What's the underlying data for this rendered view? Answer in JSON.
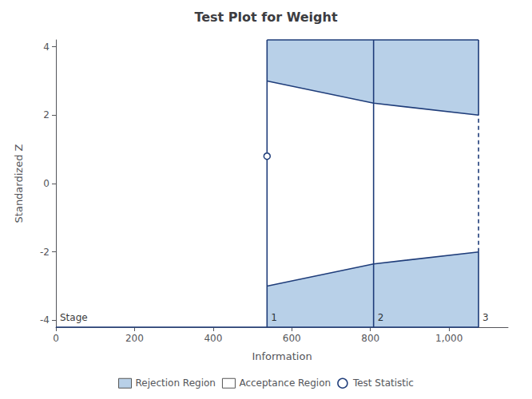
{
  "chart_data": {
    "type": "boundary",
    "title": "Test Plot for Weight",
    "xlabel": "Information",
    "ylabel": "Standardized Z",
    "xlim": [
      0,
      1150
    ],
    "ylim": [
      -4.2,
      4.2
    ],
    "xticks": [
      0,
      200,
      400,
      600,
      800,
      1000
    ],
    "yticks": [
      -4,
      -2,
      0,
      2,
      4
    ],
    "grid": false,
    "legend": "bottom",
    "stage_label": "Stage",
    "stages": {
      "x": [
        537,
        808,
        1075
      ],
      "labels": [
        "1",
        "2",
        "3"
      ],
      "upper": [
        3.0,
        2.35,
        2.0
      ],
      "lower": [
        -3.0,
        -2.35,
        -2.0
      ],
      "color": "#1f3d7a"
    },
    "series": [
      {
        "name": "Rejection Region",
        "color": "#b8d0e8"
      },
      {
        "name": "Acceptance Region",
        "color": "#ffffff"
      },
      {
        "name": "Test Statistic",
        "color": "#1f3d7a",
        "marker": "circle",
        "x": [
          537
        ],
        "y": [
          0.8
        ]
      }
    ]
  }
}
